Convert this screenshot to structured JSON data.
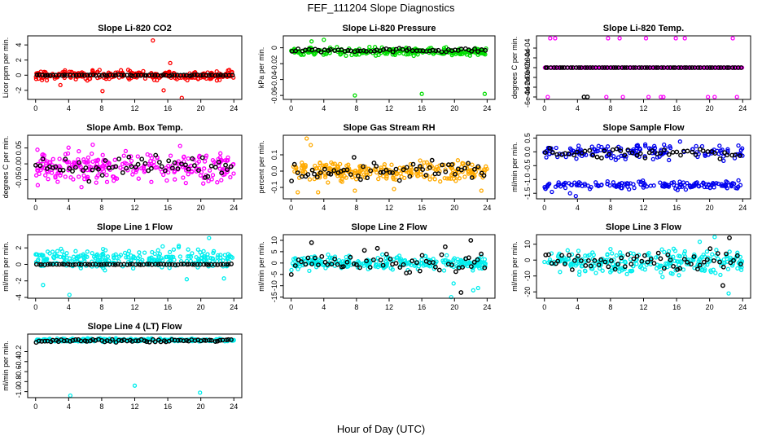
{
  "title": "FEF_111204  Slope Diagnostics",
  "xlabel": "Hour of Day (UTC)",
  "colors": {
    "overlay": "#000000"
  },
  "chart_data": [
    {
      "type": "scatter",
      "title": "Slope Li-820 CO2",
      "ylabel": "Licor ppm per min.",
      "color": "#ff0000",
      "xlim": [
        0,
        24
      ],
      "xticks": [
        0,
        4,
        8,
        12,
        16,
        20,
        24
      ],
      "ylim": [
        -3.2,
        5.2
      ],
      "yticks": [
        -2,
        0,
        2,
        4
      ],
      "series": [
        {
          "name": "",
          "center": 0,
          "spread": 0.5,
          "outliers": [
            [
              14.2,
              4.6
            ],
            [
              15.5,
              -2
            ],
            [
              17.7,
              -3
            ],
            [
              8.1,
              -2.1
            ],
            [
              3,
              -1.3
            ],
            [
              16.3,
              1.6
            ]
          ]
        }
      ],
      "overlay": {
        "center": 0,
        "spread": 0.05,
        "count": 70
      }
    },
    {
      "type": "scatter",
      "title": "Slope Li-820 Pressure",
      "ylabel": "kPa per min.",
      "color": "#00dd00",
      "xlim": [
        0,
        24
      ],
      "xticks": [
        0,
        4,
        8,
        12,
        16,
        20,
        24
      ],
      "ylim": [
        -0.065,
        0.015
      ],
      "yticks": [
        -0.06,
        -0.04,
        -0.02,
        0
      ],
      "series": [
        {
          "name": "",
          "center": -0.005,
          "spread": 0.004,
          "outliers": [
            [
              7.8,
              -0.06
            ],
            [
              16,
              -0.058
            ],
            [
              23.7,
              -0.058
            ],
            [
              4,
              0.01
            ],
            [
              2.5,
              0.008
            ]
          ]
        }
      ],
      "overlay": {
        "center": -0.003,
        "spread": 0.002,
        "count": 60
      }
    },
    {
      "type": "scatter",
      "title": "Slope Li-820 Temp.",
      "ylabel": "degrees C per min.",
      "color": "#ff00ff",
      "xlim": [
        0,
        24
      ],
      "xticks": [
        0,
        4,
        8,
        12,
        16,
        20,
        24
      ],
      "ylim": [
        -0.00065,
        0.00065
      ],
      "yticks": [
        -0.0006,
        -0.0004,
        -0.0002,
        0,
        0.0002,
        0.0004
      ],
      "ytick_labels": [
        "-6e-04",
        "-4e-04",
        "-2e-04",
        "0e+00",
        "2e-04",
        "4e-04"
      ],
      "series": [
        {
          "name": "",
          "center": 0,
          "spread": 0,
          "outliers": [
            [
              0.7,
              0.0006
            ],
            [
              1.3,
              0.0006
            ],
            [
              7.7,
              0.0006
            ],
            [
              9.1,
              0.0006
            ],
            [
              12.3,
              0.0006
            ],
            [
              15.9,
              0.0006
            ],
            [
              17,
              0.0006
            ],
            [
              22.8,
              0.0006
            ],
            [
              0.4,
              -0.0006
            ],
            [
              7.5,
              -0.0006
            ],
            [
              9.5,
              -0.0006
            ],
            [
              12.6,
              -0.0006
            ],
            [
              14.1,
              -0.0006
            ],
            [
              14.4,
              -0.0006
            ],
            [
              19.8,
              -0.0006
            ],
            [
              20.6,
              -0.0006
            ],
            [
              23.3,
              -0.0006
            ]
          ]
        }
      ],
      "overlay": {
        "center": 0,
        "spread": 0,
        "count": 70,
        "extra": [
          [
            4.8,
            -0.0006
          ],
          [
            5.2,
            -0.0006
          ]
        ]
      }
    },
    {
      "type": "scatter",
      "title": "Slope Amb. Box Temp.",
      "ylabel": "degrees C per min.",
      "color": "#ff00ff",
      "xlim": [
        0,
        24
      ],
      "xticks": [
        0,
        4,
        8,
        12,
        16,
        20,
        24
      ],
      "ylim": [
        -0.11,
        0.09
      ],
      "yticks": [
        -0.05,
        0,
        0.05
      ],
      "ytick_labels": [
        "-0.05",
        "0.00",
        "0.05"
      ],
      "series": [
        {
          "name": "",
          "center": -0.01,
          "spread": 0.04,
          "outliers": []
        }
      ],
      "overlay": {
        "center": -0.01,
        "spread": 0.03,
        "count": 60
      }
    },
    {
      "type": "scatter",
      "title": "Slope Gas Stream RH",
      "ylabel": "percent per min.",
      "color": "#ffaa00",
      "xlim": [
        0,
        24
      ],
      "xticks": [
        0,
        4,
        8,
        12,
        16,
        20,
        24
      ],
      "ylim": [
        -0.17,
        0.22
      ],
      "yticks": [
        -0.1,
        0,
        0.1
      ],
      "ytick_labels": [
        "-0.1",
        "0.0",
        "0.1"
      ],
      "series": [
        {
          "name": "",
          "center": 0,
          "spread": 0.045,
          "outliers": [
            [
              1.9,
              0.2
            ],
            [
              2.4,
              0.16
            ],
            [
              0.8,
              -0.13
            ],
            [
              23.3,
              -0.12
            ],
            [
              12.6,
              -0.11
            ],
            [
              7.8,
              -0.12
            ],
            [
              3.3,
              -0.13
            ]
          ]
        }
      ],
      "overlay": {
        "center": 0,
        "spread": 0.05,
        "count": 60
      }
    },
    {
      "type": "scatter",
      "title": "Slope Sample Flow",
      "ylabel": "ml/min per min.",
      "color": "#0000ee",
      "xlim": [
        0,
        24
      ],
      "xticks": [
        0,
        4,
        8,
        12,
        16,
        20,
        24
      ],
      "ylim": [
        -1.7,
        0.6
      ],
      "yticks": [
        -1.5,
        -1,
        -0.5,
        0,
        0.5
      ],
      "ytick_labels": [
        "-1.5",
        "-1.0",
        "-0.5",
        "0.0",
        "0.5"
      ],
      "series": [
        {
          "name": "",
          "center": 0,
          "spread": 0.22,
          "outliers": []
        },
        {
          "name": "",
          "center": -1.2,
          "spread": 0.12,
          "outliers": [
            [
              3.8,
              -1.6
            ],
            [
              3.1,
              -1.5
            ],
            [
              0.9,
              -1.45
            ]
          ]
        }
      ],
      "overlay": {
        "center": -0.05,
        "spread": 0.15,
        "count": 50
      }
    },
    {
      "type": "scatter",
      "title": "Slope Line 1 Flow",
      "ylabel": "ml/min per min.",
      "color": "#00eeee",
      "xlim": [
        0,
        24
      ],
      "xticks": [
        0,
        4,
        8,
        12,
        16,
        20,
        24
      ],
      "ylim": [
        -4.1,
        3.6
      ],
      "yticks": [
        -4,
        -2,
        0,
        2
      ],
      "series": [
        {
          "name": "",
          "center": 0.7,
          "spread": 0.9,
          "outliers": [
            [
              4.1,
              -3.7
            ],
            [
              21,
              3.2
            ],
            [
              18.3,
              -1.8
            ],
            [
              0.9,
              -2.5
            ],
            [
              22.8,
              -1.7
            ]
          ]
        }
      ],
      "overlay": {
        "center": 0,
        "spread": 0.04,
        "count": 70
      }
    },
    {
      "type": "scatter",
      "title": "Slope Line 2 Flow",
      "ylabel": "ml/min per min.",
      "color": "#00eeee",
      "xlim": [
        0,
        24
      ],
      "xticks": [
        0,
        4,
        8,
        12,
        16,
        20,
        24
      ],
      "ylim": [
        -15.5,
        12.5
      ],
      "yticks": [
        -15,
        -10,
        -5,
        0,
        5,
        10
      ],
      "series": [
        {
          "name": "",
          "center": 0,
          "spread": 2.5,
          "outliers": [
            [
              19.6,
              -15
            ],
            [
              22.3,
              -12
            ],
            [
              22.9,
              -11
            ],
            [
              19.9,
              -9
            ]
          ]
        }
      ],
      "overlay": {
        "center": 0,
        "spread": 4,
        "count": 60,
        "extra": [
          [
            22,
            10
          ],
          [
            2.5,
            9
          ],
          [
            20.8,
            -13
          ]
        ]
      }
    },
    {
      "type": "scatter",
      "title": "Slope Line 3 Flow",
      "ylabel": "ml/min per min.",
      "color": "#00eeee",
      "xlim": [
        0,
        24
      ],
      "xticks": [
        0,
        4,
        8,
        12,
        16,
        20,
        24
      ],
      "ylim": [
        -24,
        16
      ],
      "yticks": [
        -20,
        -10,
        0,
        10
      ],
      "series": [
        {
          "name": "",
          "center": -1,
          "spread": 6,
          "outliers": [
            [
              22.3,
              -21
            ],
            [
              20.6,
              14.5
            ],
            [
              18.8,
              11.5
            ]
          ]
        }
      ],
      "overlay": {
        "center": 0,
        "spread": 6,
        "count": 60,
        "extra": [
          [
            22.4,
            14
          ],
          [
            21.6,
            -16
          ]
        ]
      }
    },
    {
      "type": "scatter",
      "title": "Slope Line 4 (LT) Flow",
      "ylabel": "ml/min per min.",
      "color": "#00eeee",
      "xlim": [
        0,
        24
      ],
      "xticks": [
        0,
        4,
        8,
        12,
        16,
        20,
        24
      ],
      "ylim": [
        -1.12,
        0.15
      ],
      "yticks": [
        -1,
        -0.8,
        -0.6,
        -0.4,
        -0.2
      ],
      "ytick_labels": [
        "-1.0",
        "-0.8",
        "-0.6",
        "-0.4",
        "-0.2"
      ],
      "series": [
        {
          "name": "",
          "center": 0.03,
          "spread": 0.025,
          "outliers": [
            [
              4.2,
              -1.08
            ],
            [
              12,
              -0.88
            ],
            [
              19.9,
              -1.02
            ]
          ]
        }
      ],
      "overlay": {
        "center": 0.02,
        "spread": 0.03,
        "count": 70
      }
    }
  ]
}
